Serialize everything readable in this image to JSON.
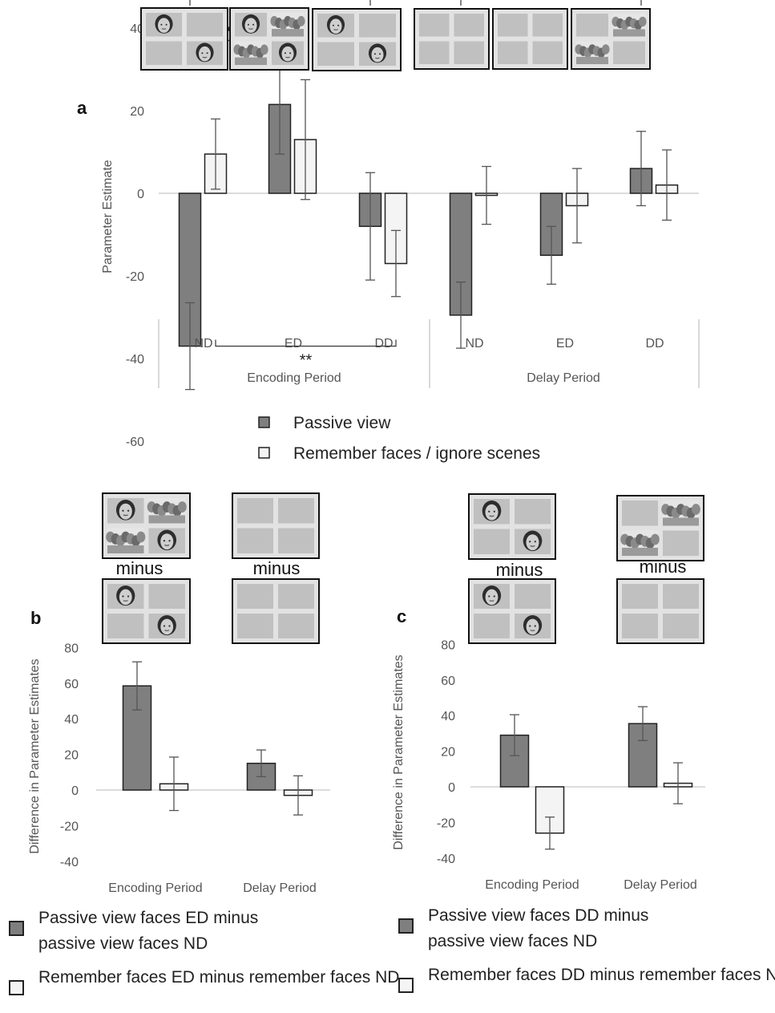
{
  "chart_data": [
    {
      "id": "a",
      "type": "bar",
      "panel_label": "a",
      "ylabel": "Parameter Estimate",
      "ylim": [
        -60,
        40
      ],
      "yticks": [
        40,
        20,
        0,
        -20,
        -40,
        -60
      ],
      "groups": [
        {
          "label": "Encoding Period",
          "categories": [
            "ND",
            "ED",
            "DD"
          ]
        },
        {
          "label": "Delay Period",
          "categories": [
            "ND",
            "ED",
            "DD"
          ]
        }
      ],
      "series": [
        {
          "name": "Passive view",
          "color": "#7f7f7f",
          "values": [
            -37,
            21.5,
            -8,
            -29.5,
            -15,
            6
          ],
          "error": [
            10.5,
            12,
            13,
            8,
            7,
            9
          ]
        },
        {
          "name": "Remember faces / ignore scenes",
          "color": "#f4f4f4",
          "values": [
            9.5,
            13,
            -17,
            -0.5,
            -3,
            2
          ],
          "error": [
            8.5,
            14.5,
            8,
            7,
            9,
            8.5
          ]
        }
      ],
      "significance": [
        {
          "label": "***",
          "from_bar": 0,
          "to_bar": 2,
          "level": 37
        },
        {
          "label": "*",
          "from_bar": 0,
          "to_bar": 4,
          "level": 47
        },
        {
          "label": "***",
          "from_bar": 6,
          "to_bar": 10,
          "level": 47
        },
        {
          "label": "**",
          "from_bar": 1,
          "to_bar": 5,
          "level": -37
        }
      ]
    },
    {
      "id": "b",
      "type": "bar",
      "panel_label": "b",
      "ylabel": "Difference in Parameter Estimates",
      "ylim": [
        -40,
        80
      ],
      "yticks": [
        80,
        60,
        40,
        20,
        0,
        -20,
        -40
      ],
      "categories": [
        "Encoding Period",
        "Delay Period"
      ],
      "series": [
        {
          "name": "Passive view faces ED minus passive view faces ND",
          "color": "#7f7f7f",
          "values": [
            58.5,
            15
          ],
          "error": [
            13.5,
            7.5
          ]
        },
        {
          "name": "Remember faces ED minus remember faces ND",
          "color": "#f4f4f4",
          "values": [
            3.5,
            -3
          ],
          "error": [
            15,
            11
          ]
        }
      ]
    },
    {
      "id": "c",
      "type": "bar",
      "panel_label": "c",
      "ylabel": "Difference in Parameter Estimates",
      "ylim": [
        -40,
        80
      ],
      "yticks": [
        80,
        60,
        40,
        20,
        0,
        -20,
        -40
      ],
      "categories": [
        "Encoding Period",
        "Delay Period"
      ],
      "series": [
        {
          "name": "Passive view faces DD minus passive view faces ND",
          "color": "#7f7f7f",
          "values": [
            29,
            35.5
          ],
          "error": [
            11.5,
            9.5
          ]
        },
        {
          "name": "Remember faces DD minus remember faces ND",
          "color": "#f4f4f4",
          "values": [
            -26,
            2
          ],
          "error": [
            9,
            11.5
          ]
        }
      ]
    }
  ],
  "minus_label": "minus",
  "stimulus_icons": {
    "cell_color": "#c0c0c0",
    "frame_color": "#e2e2e2",
    "face_icon": "face-photo-icon",
    "scene_icon": "scene-photo-icon"
  }
}
